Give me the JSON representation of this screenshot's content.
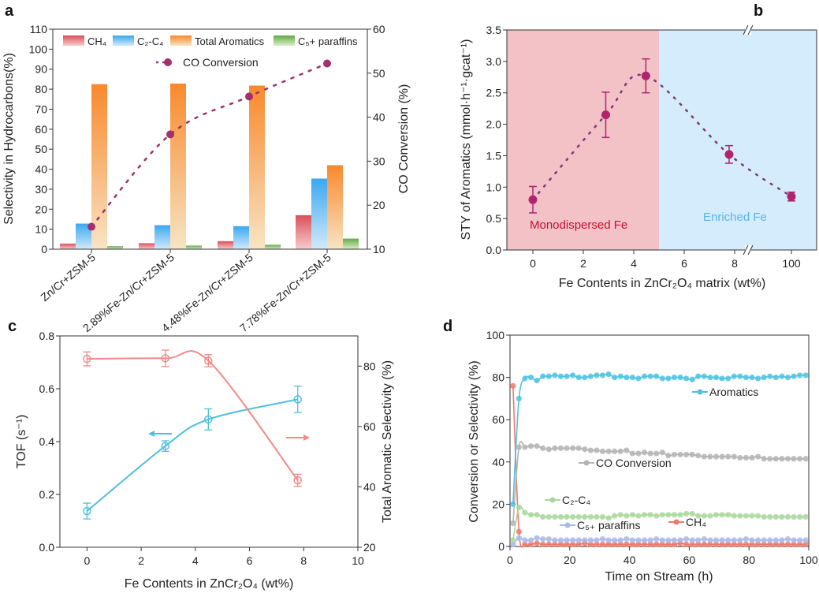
{
  "chart_data": [
    {
      "panel": "a",
      "type": "bar",
      "categories": [
        "Zn/Cr+ZSM-5",
        "2.89%Fe-Zn/Cr+ZSM-5",
        "4.48%Fe-Zn/Cr+ZSM-5",
        "7.78%Fe-Zn/Cr+ZSM-5"
      ],
      "series": [
        {
          "name": "CH₄",
          "values": [
            2.8,
            3.0,
            4.0,
            17.0
          ],
          "color": "#d9505a",
          "color_light": "#f9cccc"
        },
        {
          "name": "C₂-C₄",
          "values": [
            12.8,
            12.0,
            11.5,
            35.3
          ],
          "color": "#3aa8f0",
          "color_light": "#d2eafb"
        },
        {
          "name": "Total Aromatics",
          "values": [
            82.5,
            82.8,
            81.8,
            42.0
          ],
          "color": "#f9892c",
          "color_light": "#f8e4c4"
        },
        {
          "name": "C₅+ paraffins",
          "values": [
            1.5,
            1.8,
            2.2,
            5.3
          ],
          "color": "#62aa44",
          "color_light": "#d9efcb"
        }
      ],
      "line_series": {
        "name": "CO Conversion",
        "values": [
          15.1,
          36.1,
          44.7,
          52.2
        ],
        "color": "#a0306e",
        "axis": "right",
        "style": "dotted"
      },
      "ylabel": "Selectivity in Hydrocarbons(%)",
      "ylabel_right": "CO Conversion (%)",
      "ylim": [
        0,
        110
      ],
      "ylim_right": [
        10,
        60
      ],
      "yticks": [
        0,
        10,
        20,
        30,
        40,
        50,
        60,
        70,
        80,
        90,
        100,
        110
      ],
      "yticks_right": [
        10,
        20,
        30,
        40,
        50,
        60
      ],
      "legend_placement": "top"
    },
    {
      "panel": "b",
      "type": "scatter",
      "x": [
        0,
        2.89,
        4.48,
        7.78,
        100
      ],
      "y": [
        0.8,
        2.15,
        2.77,
        1.52,
        0.85
      ],
      "err": [
        0.21,
        0.36,
        0.27,
        0.14,
        0.07
      ],
      "color": "#b0246e",
      "line_color": "#7a3a7a",
      "xlabel": "Fe Contents in ZnCr₂O₄ matrix (wt%)",
      "ylabel": "STY of Aromatics (mmol·h⁻¹·gcat⁻¹)",
      "ylim": [
        0,
        3.5
      ],
      "yticks": [
        "0.0",
        "0.5",
        "1.0",
        "1.5",
        "2.0",
        "2.5",
        "3.0",
        "3.5"
      ],
      "xticks": [
        0,
        2,
        4,
        6,
        8,
        100
      ],
      "xticklabels": [
        "0",
        "2",
        "4",
        "6",
        "8",
        "100"
      ],
      "x_axis_break": true,
      "regions": [
        {
          "label": "Monodispersed Fe",
          "from": -1.5,
          "to": 5,
          "color": "#f2c2c6",
          "text_color": "#c8102e"
        },
        {
          "label": "Enriched  Fe",
          "from": 5,
          "to": 100,
          "color": "#d4ecfb",
          "text_color": "#5ab4e8"
        }
      ]
    },
    {
      "panel": "c",
      "type": "line",
      "x": [
        0,
        2.89,
        4.48,
        7.78
      ],
      "series": [
        {
          "name": "TOF",
          "values": [
            0.137,
            0.383,
            0.484,
            0.56
          ],
          "err": [
            0.03,
            0.02,
            0.04,
            0.05
          ],
          "color": "#4fbfdf",
          "axis": "left"
        },
        {
          "name": "Total Aromatic Selectivity",
          "values": [
            82.4,
            82.6,
            81.8,
            42.2
          ],
          "err": [
            2.3,
            2.7,
            2.0,
            2.0
          ],
          "color": "#f28a86",
          "axis": "right"
        }
      ],
      "xlabel": "Fe Contents in ZnCr₂O₄ (wt%)",
      "ylabel": "TOF (s⁻¹)",
      "ylabel_right": "Total Aromatic Selectivity (%)",
      "xlim": [
        -1,
        10
      ],
      "ylim": [
        0,
        0.8
      ],
      "ylim_right": [
        20,
        90
      ],
      "xticks": [
        0,
        2,
        4,
        6,
        8,
        10
      ],
      "yticks": [
        "0.0",
        "0.2",
        "0.4",
        "0.6",
        "0.8"
      ],
      "yticks_right": [
        20,
        40,
        60,
        80
      ]
    },
    {
      "panel": "d",
      "type": "line",
      "x": [
        1,
        3,
        5,
        7,
        9,
        11,
        13,
        15,
        17,
        19,
        21,
        23,
        25,
        27,
        29,
        31,
        33,
        35,
        37,
        39,
        41,
        43,
        45,
        47,
        49,
        51,
        53,
        55,
        57,
        59,
        61,
        63,
        65,
        67,
        69,
        71,
        73,
        75,
        77,
        79,
        81,
        83,
        85,
        87,
        89,
        91,
        93,
        95,
        97,
        99
      ],
      "series": [
        {
          "name": "Aromatics",
          "color": "#4fc3e0",
          "values": [
            20,
            70,
            79.5,
            80,
            78.5,
            80.5,
            80.5,
            81,
            80.5,
            80.5,
            81,
            80,
            80,
            80.5,
            81,
            81,
            81.5,
            80,
            80.5,
            80,
            80,
            79.5,
            80.5,
            80.5,
            80.5,
            79.5,
            79.5,
            80,
            80,
            79.5,
            79,
            80.5,
            80.5,
            80,
            80,
            79.5,
            79.5,
            80.5,
            80.5,
            80,
            80,
            79.5,
            80,
            80.5,
            80,
            80.5,
            80,
            80.5,
            81,
            81
          ]
        },
        {
          "name": "CO Conversion",
          "color": "#b4b4b4",
          "values": [
            11,
            47,
            47,
            47.5,
            47.5,
            46.5,
            46,
            46.5,
            46.5,
            46.5,
            46.5,
            46.5,
            46,
            45.5,
            45.5,
            45,
            45,
            45,
            45,
            45.5,
            44,
            44,
            44.5,
            44,
            44,
            44.5,
            43,
            43.5,
            43.5,
            43.5,
            43.5,
            43,
            42.5,
            42.5,
            42.5,
            42.5,
            42.5,
            42.5,
            42,
            42,
            42,
            42.5,
            41.5,
            41.5,
            41.5,
            41.5,
            41.5,
            41.5,
            41.5,
            41.5
          ]
        },
        {
          "name": "C₂-C₄",
          "color": "#aad89c",
          "values": [
            3,
            18.5,
            16,
            15,
            15,
            14,
            14,
            14,
            14,
            14,
            14,
            14,
            14,
            14,
            14,
            14,
            13.5,
            14.5,
            15,
            14.5,
            15,
            14.5,
            15,
            15,
            14.5,
            15,
            15,
            15,
            15,
            15.5,
            15.5,
            14.5,
            14.5,
            14.5,
            15,
            15,
            15,
            14.5,
            14.5,
            14.5,
            14.5,
            14.5,
            14,
            14,
            14,
            14,
            14,
            14,
            14,
            14
          ]
        },
        {
          "name": "C₅₊ paraffins",
          "color": "#aab8e8",
          "values": [
            1,
            4,
            3,
            3,
            4,
            3.5,
            3.5,
            3,
            3,
            3,
            3,
            3,
            3,
            3,
            3,
            3.5,
            3,
            3,
            3,
            3.5,
            3,
            3,
            3,
            3,
            3.5,
            3,
            3,
            3,
            3,
            3.5,
            3,
            3,
            3.5,
            3,
            3,
            3,
            3,
            3,
            3,
            3.5,
            3,
            3,
            3,
            3,
            3,
            3,
            3.5,
            3,
            3,
            3
          ]
        },
        {
          "name": "CH₄",
          "color": "#f07a6a",
          "values": [
            76,
            7,
            1,
            1,
            1.5,
            1,
            1,
            1,
            1,
            1,
            1,
            1,
            1.5,
            1,
            1,
            1,
            1,
            1,
            1,
            1,
            1,
            1,
            1,
            1,
            1,
            1,
            1,
            1,
            1.5,
            1,
            1,
            1,
            1,
            1,
            1,
            1,
            1,
            1,
            1,
            1,
            1,
            1,
            1,
            1,
            1,
            1,
            1,
            1,
            1,
            1
          ]
        }
      ],
      "xlabel": "Time on Stream (h)",
      "ylabel": "Conversion or Selectivity (%)",
      "xlim": [
        0,
        100
      ],
      "ylim": [
        0,
        100
      ],
      "xticks": [
        0,
        20,
        40,
        60,
        80,
        100
      ],
      "yticks": [
        0,
        20,
        40,
        60,
        80,
        100
      ],
      "legend_placement": "inline"
    }
  ],
  "panel_labels": [
    "a",
    "b",
    "c",
    "d"
  ]
}
